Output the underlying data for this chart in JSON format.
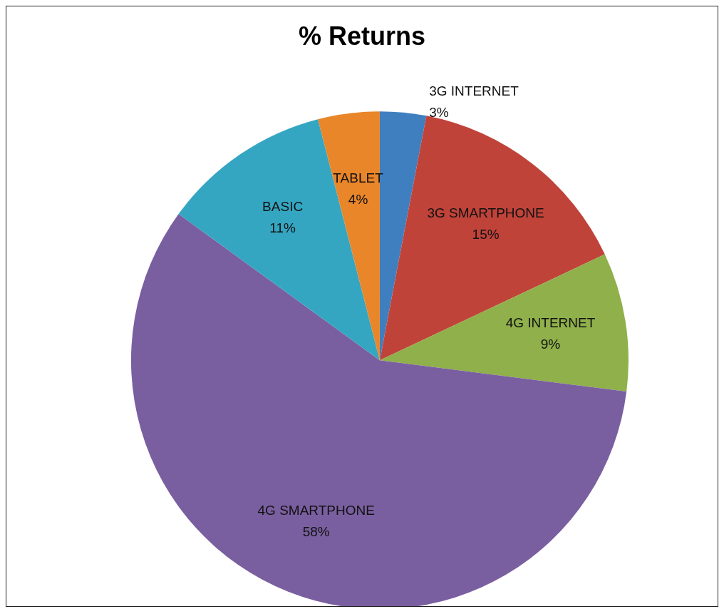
{
  "chart_data": {
    "type": "pie",
    "title": "% Returns",
    "categories": [
      "3G INTERNET",
      "3G SMARTPHONE",
      "4G INTERNET",
      "4G SMARTPHONE",
      "BASIC",
      "TABLET"
    ],
    "values": [
      3,
      15,
      9,
      58,
      11,
      4
    ],
    "colors": [
      "#3f7fc0",
      "#c0433a",
      "#8fb04a",
      "#7a5fa0",
      "#34a6c2",
      "#e9862a"
    ],
    "value_labels": [
      "3%",
      "15%",
      "9%",
      "58%",
      "11%",
      "4%"
    ]
  }
}
